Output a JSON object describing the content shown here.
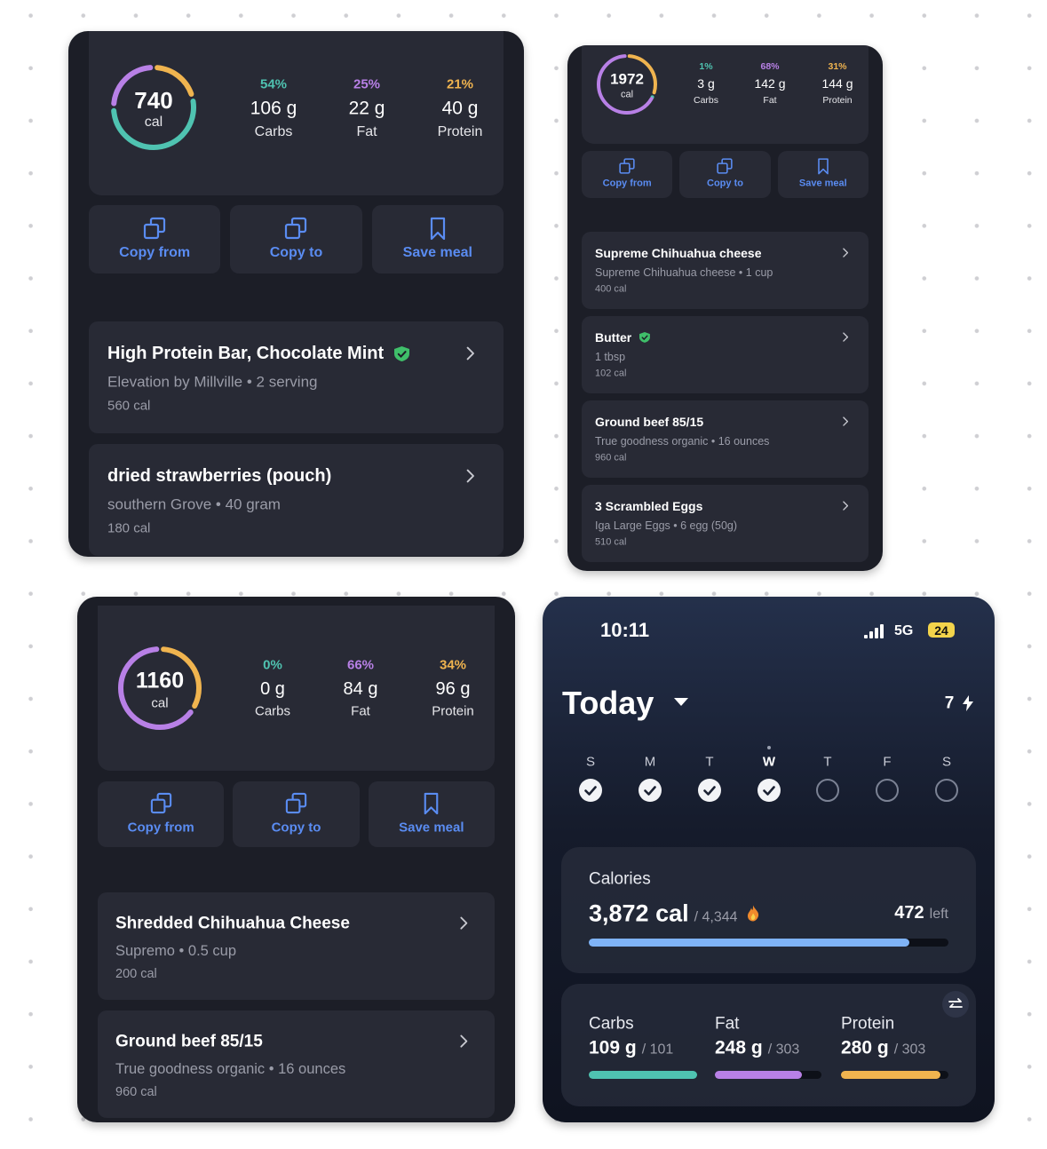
{
  "cards": [
    {
      "summary": {
        "calories": "740",
        "unit": "cal",
        "macros": [
          {
            "percent": "54%",
            "amount": "106 g",
            "name": "Carbs",
            "color": "#4fc3b1"
          },
          {
            "percent": "25%",
            "amount": "22 g",
            "name": "Fat",
            "color": "#b880e6"
          },
          {
            "percent": "21%",
            "amount": "40 g",
            "name": "Protein",
            "color": "#f0b44f"
          }
        ]
      },
      "actions": [
        "Copy from",
        "Copy to",
        "Save meal"
      ],
      "foods": [
        {
          "name": "High Protein Bar, Chocolate Mint",
          "verified": true,
          "detail": "Elevation by Millville • 2 serving",
          "calories": "560 cal"
        },
        {
          "name": "dried strawberries (pouch)",
          "verified": false,
          "detail": "southern Grove • 40 gram",
          "calories": "180 cal"
        }
      ]
    },
    {
      "summary": {
        "calories": "1972",
        "unit": "cal",
        "macros": [
          {
            "percent": "1%",
            "amount": "3 g",
            "name": "Carbs",
            "color": "#4fc3b1"
          },
          {
            "percent": "68%",
            "amount": "142 g",
            "name": "Fat",
            "color": "#b880e6"
          },
          {
            "percent": "31%",
            "amount": "144 g",
            "name": "Protein",
            "color": "#f0b44f"
          }
        ]
      },
      "actions": [
        "Copy from",
        "Copy to",
        "Save meal"
      ],
      "foods": [
        {
          "name": "Supreme Chihuahua cheese",
          "verified": false,
          "detail": "Supreme Chihuahua cheese • 1 cup",
          "calories": "400 cal"
        },
        {
          "name": "Butter",
          "verified": true,
          "detail": "1 tbsp",
          "calories": "102 cal"
        },
        {
          "name": "Ground beef 85/15",
          "verified": false,
          "detail": "True goodness organic • 16 ounces",
          "calories": "960 cal"
        },
        {
          "name": "3 Scrambled Eggs",
          "verified": false,
          "detail": "Iga Large Eggs • 6 egg (50g)",
          "calories": "510 cal"
        }
      ]
    },
    {
      "summary": {
        "calories": "1160",
        "unit": "cal",
        "macros": [
          {
            "percent": "0%",
            "amount": "0 g",
            "name": "Carbs",
            "color": "#4fc3b1"
          },
          {
            "percent": "66%",
            "amount": "84 g",
            "name": "Fat",
            "color": "#b880e6"
          },
          {
            "percent": "34%",
            "amount": "96 g",
            "name": "Protein",
            "color": "#f0b44f"
          }
        ]
      },
      "actions": [
        "Copy from",
        "Copy to",
        "Save meal"
      ],
      "foods": [
        {
          "name": "Shredded Chihuahua Cheese",
          "verified": false,
          "detail": "Supremo • 0.5 cup",
          "calories": "200 cal"
        },
        {
          "name": "Ground beef 85/15",
          "verified": false,
          "detail": "True goodness organic • 16 ounces",
          "calories": "960 cal"
        }
      ]
    }
  ],
  "today": {
    "status": {
      "time": "10:11",
      "network": "5G",
      "battery": "24"
    },
    "title": "Today",
    "streak": "7",
    "days": [
      {
        "letter": "S",
        "done": true,
        "current": false
      },
      {
        "letter": "M",
        "done": true,
        "current": false
      },
      {
        "letter": "T",
        "done": true,
        "current": false
      },
      {
        "letter": "W",
        "done": true,
        "current": true
      },
      {
        "letter": "T",
        "done": false,
        "current": false
      },
      {
        "letter": "F",
        "done": false,
        "current": false
      },
      {
        "letter": "S",
        "done": false,
        "current": false
      }
    ],
    "calories": {
      "label": "Calories",
      "consumed": "3,872 cal",
      "goal": "/ 4,344",
      "remaining": "472",
      "remaining_label": "left",
      "color": "#7fb3f6"
    },
    "macros": [
      {
        "name": "Carbs",
        "consumed": "109 g",
        "goal": "/ 101",
        "color": "#4fc3b1"
      },
      {
        "name": "Fat",
        "consumed": "248 g",
        "goal": "/ 303",
        "color": "#b880e6"
      },
      {
        "name": "Protein",
        "consumed": "280 g",
        "goal": "/ 303",
        "color": "#f0b44f"
      }
    ]
  }
}
